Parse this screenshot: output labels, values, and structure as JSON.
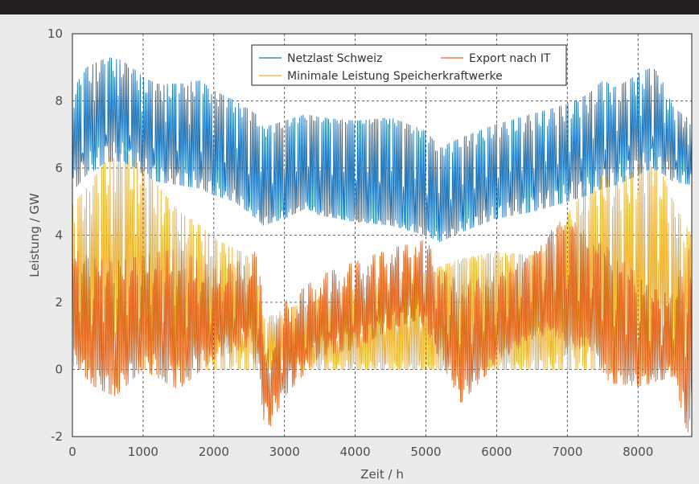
{
  "chart_data": {
    "type": "line",
    "xlabel": "Zeit / h",
    "ylabel": "Leistung / GW",
    "xlim": [
      0,
      8760
    ],
    "ylim": [
      -2,
      10
    ],
    "xticks": [
      0,
      1000,
      2000,
      3000,
      4000,
      5000,
      6000,
      7000,
      8000
    ],
    "yticks": [
      -2,
      0,
      2,
      4,
      6,
      8,
      10
    ],
    "grid": true,
    "legend_position": "top-center",
    "series": [
      {
        "name": "Netzlast Schweiz",
        "color": "#1a73b8",
        "envelope": {
          "x": [
            0,
            200,
            500,
            700,
            900,
            1000,
            1200,
            1500,
            1800,
            2000,
            2300,
            2600,
            2700,
            3000,
            3300,
            3500,
            4000,
            4500,
            5000,
            5200,
            5500,
            6000,
            6500,
            7000,
            7300,
            7500,
            7700,
            8000,
            8200,
            8300,
            8500,
            8760
          ],
          "high": [
            8.3,
            9.0,
            9.3,
            9.2,
            8.9,
            8.7,
            8.5,
            8.5,
            8.6,
            8.3,
            8.0,
            7.6,
            7.2,
            7.4,
            7.6,
            7.5,
            7.4,
            7.5,
            7.1,
            6.6,
            6.9,
            7.3,
            7.6,
            7.9,
            8.2,
            8.6,
            8.4,
            8.8,
            9.0,
            8.8,
            7.8,
            7.4
          ],
          "low": [
            5.3,
            5.8,
            6.2,
            6.2,
            6.0,
            5.8,
            5.6,
            5.5,
            5.4,
            5.2,
            5.0,
            4.5,
            4.3,
            4.5,
            4.8,
            4.6,
            4.4,
            4.3,
            4.0,
            3.8,
            4.1,
            4.5,
            4.7,
            5.0,
            5.2,
            5.4,
            5.5,
            5.8,
            6.0,
            5.9,
            5.6,
            5.5
          ]
        }
      },
      {
        "name": "Export nach IT",
        "color": "#e06620",
        "envelope": {
          "x": [
            0,
            300,
            600,
            1000,
            1500,
            2000,
            2500,
            2650,
            2700,
            2800,
            3000,
            3500,
            4000,
            4500,
            4900,
            5000,
            5200,
            5500,
            6000,
            6500,
            6800,
            7000,
            7300,
            7600,
            8000,
            8200,
            8500,
            8700,
            8760
          ],
          "high": [
            3.6,
            3.3,
            3.2,
            3.4,
            3.6,
            3.0,
            3.3,
            3.7,
            0.7,
            0.9,
            2.0,
            2.8,
            3.2,
            3.6,
            3.8,
            3.9,
            3.0,
            2.6,
            2.8,
            3.5,
            4.3,
            4.7,
            4.0,
            3.6,
            2.8,
            2.4,
            2.2,
            3.7,
            3.3
          ],
          "low": [
            0.2,
            -0.5,
            -0.8,
            0.0,
            -0.6,
            0.3,
            0.7,
            -0.2,
            -1.5,
            -1.7,
            -0.8,
            0.4,
            0.6,
            1.2,
            1.5,
            1.2,
            0.3,
            -1.0,
            0.2,
            0.9,
            1.1,
            0.5,
            0.7,
            -0.4,
            -0.5,
            -0.4,
            -0.2,
            -1.9,
            -1.5
          ]
        }
      },
      {
        "name": "Minimale Leistung Speicherkraftwerke",
        "color": "#edb12e",
        "envelope": {
          "x": [
            0,
            200,
            400,
            600,
            700,
            900,
            1200,
            1500,
            1800,
            2000,
            2300,
            2600,
            2700,
            3000,
            3500,
            4000,
            4500,
            5000,
            5500,
            6000,
            6500,
            6800,
            7000,
            7300,
            7500,
            7700,
            8000,
            8200,
            8400,
            8500,
            8700,
            8760
          ],
          "high": [
            4.9,
            5.4,
            6.0,
            6.5,
            6.6,
            6.2,
            5.5,
            4.7,
            4.3,
            3.9,
            3.6,
            3.2,
            1.5,
            1.8,
            2.1,
            2.4,
            2.6,
            2.9,
            3.3,
            3.5,
            3.4,
            3.6,
            4.6,
            5.5,
            5.8,
            5.6,
            6.0,
            6.7,
            5.5,
            5.0,
            4.2,
            3.9
          ],
          "low": [
            0.0,
            0.0,
            0.0,
            0.0,
            0.0,
            0.0,
            0.0,
            0.0,
            0.0,
            0.0,
            0.0,
            0.0,
            0.0,
            0.0,
            0.0,
            0.0,
            0.0,
            0.0,
            0.0,
            0.0,
            0.0,
            0.0,
            0.0,
            0.0,
            0.0,
            0.0,
            0.0,
            0.0,
            0.0,
            0.0,
            0.0,
            0.0
          ]
        }
      }
    ]
  }
}
